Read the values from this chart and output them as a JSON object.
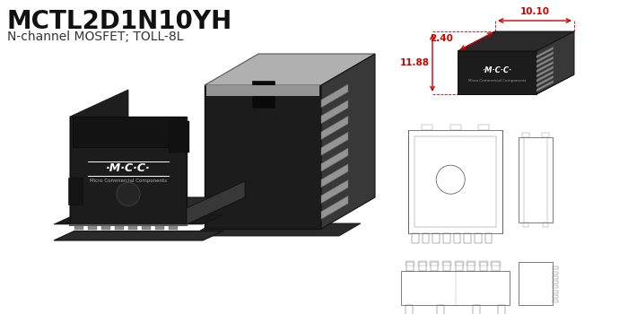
{
  "title": "MCTL2D1N10YH",
  "subtitle": "N-channel MOSFET; TOLL-8L",
  "bg_color": "#ffffff",
  "title_fontsize": 20,
  "subtitle_fontsize": 10,
  "dim_10_10": "10.10",
  "dim_2_40": "2.40",
  "dim_11_88": "11.88",
  "dim_color": "#cc0000",
  "mcc_label": "·M·C·C·",
  "mcc_sub": "Micro Commercial Components",
  "body_dark": "#1c1c1c",
  "body_mid": "#2a2a2a",
  "body_light": "#383838",
  "body_side": "#222222",
  "gray_top": "#b0b0b0",
  "gray_mid": "#949494",
  "pin_color": "#c0c0c0",
  "pin_dark": "#888888"
}
